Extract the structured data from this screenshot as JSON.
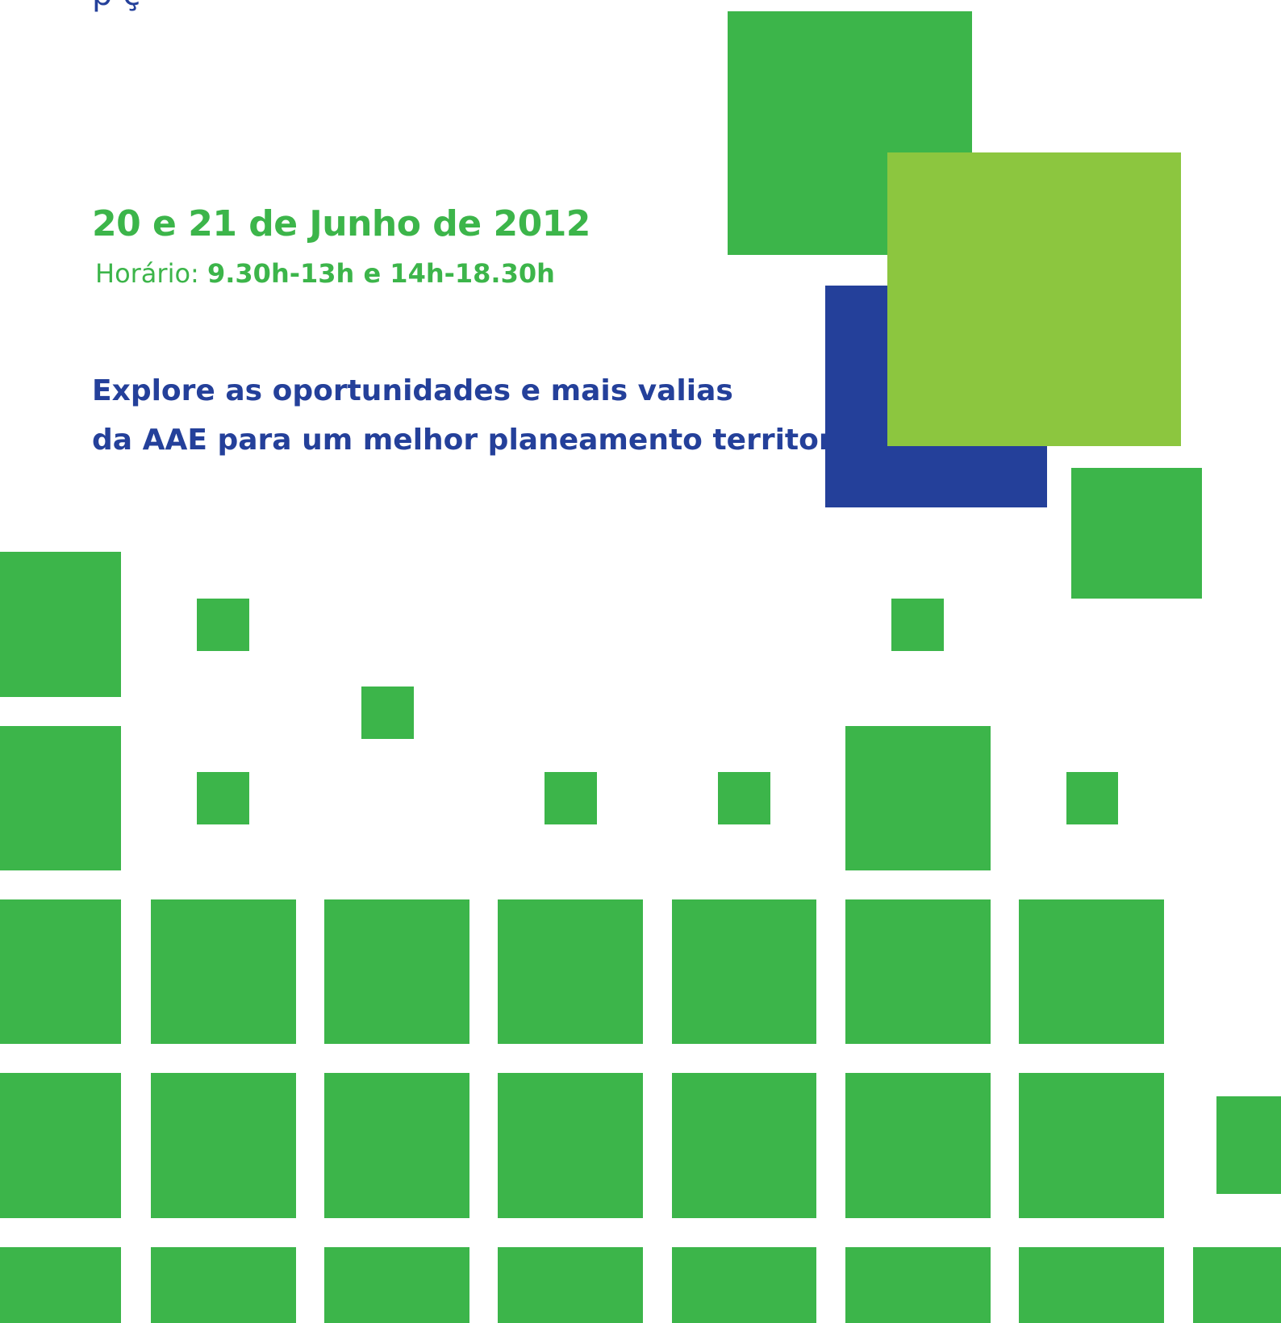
{
  "header": {
    "cut_off_line": "p                                  ç"
  },
  "event": {
    "date": "20 e 21 de Junho de 2012",
    "schedule_label": "Horário:",
    "schedule_time": "9.30h-13h e 14h-18.30h"
  },
  "tagline": {
    "line1": "Explore as oportunidades e mais valias",
    "line2": "da AAE para um melhor planeamento territorial!"
  },
  "colors": {
    "green": "#3cb54a",
    "light_green": "#8cc63f",
    "blue": "#24409a"
  }
}
